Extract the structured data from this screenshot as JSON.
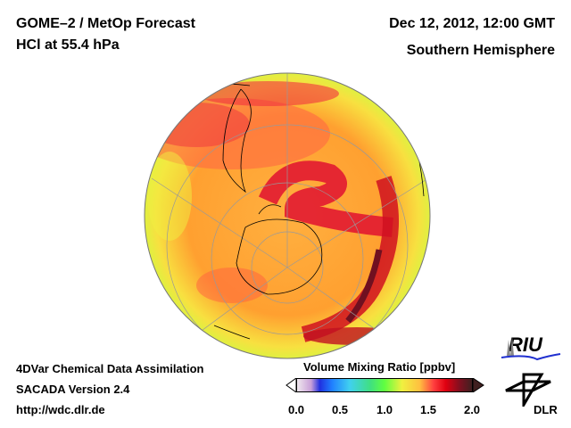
{
  "header": {
    "title_line1": "GOME–2 / MetOp Forecast",
    "title_line2": "HCl at 55.4 hPa",
    "date": "Dec 12, 2012, 12:00 GMT",
    "region": "Southern Hemisphere"
  },
  "footer": {
    "line1": "4DVar Chemical Data Assimilation",
    "line2": "SACADA Version 2.4",
    "line3": "http://wdc.dlr.de"
  },
  "colorbar": {
    "title": "Volume Mixing Ratio [ppbv]",
    "ticks": [
      "0.0",
      "0.5",
      "1.0",
      "1.5",
      "2.0"
    ],
    "range": [
      0.0,
      2.0
    ]
  },
  "logos": {
    "riu": "RIU",
    "dlr": "DLR"
  }
}
